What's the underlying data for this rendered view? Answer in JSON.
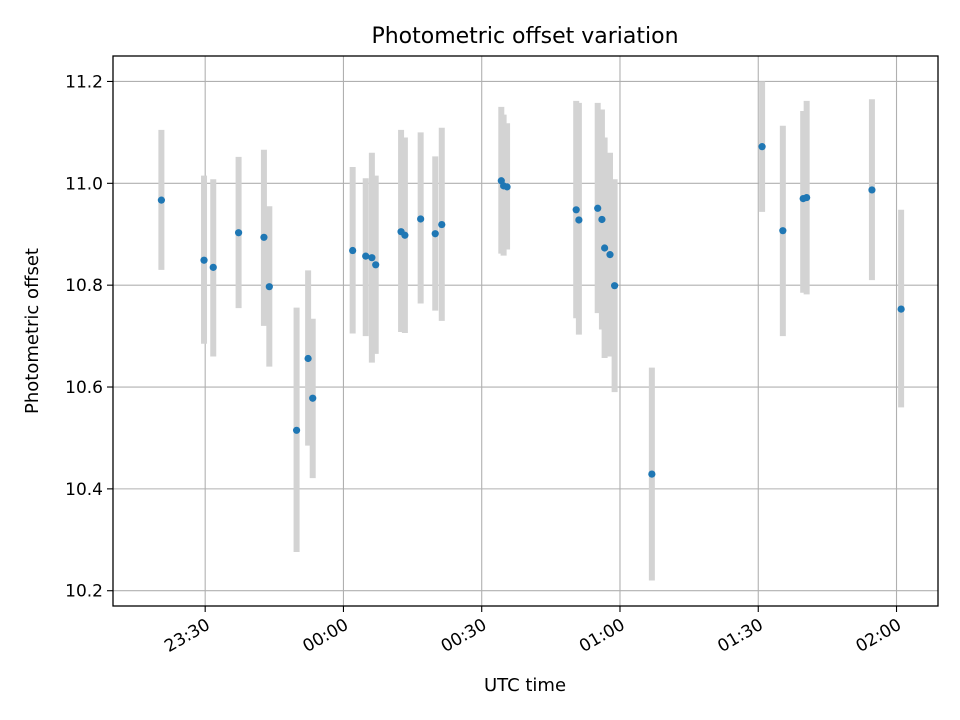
{
  "chart_data": {
    "type": "scatter",
    "title": "Photometric offset variation",
    "xlabel": "UTC time",
    "ylabel": "Photometric offset",
    "x_unit": "time",
    "xlim": [
      "23:10",
      "02:09"
    ],
    "ylim": [
      10.17,
      11.25
    ],
    "x_ticks": [
      "23:30",
      "00:00",
      "00:30",
      "01:00",
      "01:30",
      "02:00"
    ],
    "y_ticks": [
      10.2,
      10.4,
      10.6,
      10.8,
      11.0,
      11.2
    ],
    "y_tick_labels": [
      "10.2",
      "10.4",
      "10.6",
      "10.8",
      "11.0",
      "11.2"
    ],
    "grid": true,
    "point_color": "#1f77b4",
    "errorbar_color": "#d3d3d3",
    "series": [
      {
        "points": [
          {
            "x": "23:20:30",
            "y": 10.967,
            "ylo": 10.83,
            "yhi": 11.105
          },
          {
            "x": "23:29:45",
            "y": 10.849,
            "ylo": 10.685,
            "yhi": 11.015
          },
          {
            "x": "23:31:45",
            "y": 10.835,
            "ylo": 10.66,
            "yhi": 11.008
          },
          {
            "x": "23:37:15",
            "y": 10.903,
            "ylo": 10.755,
            "yhi": 11.052
          },
          {
            "x": "23:42:45",
            "y": 10.894,
            "ylo": 10.72,
            "yhi": 11.066
          },
          {
            "x": "23:43:55",
            "y": 10.797,
            "ylo": 10.64,
            "yhi": 10.955
          },
          {
            "x": "23:49:50",
            "y": 10.515,
            "ylo": 10.276,
            "yhi": 10.756
          },
          {
            "x": "23:52:20",
            "y": 10.656,
            "ylo": 10.485,
            "yhi": 10.829
          },
          {
            "x": "23:53:20",
            "y": 10.578,
            "ylo": 10.421,
            "yhi": 10.734
          },
          {
            "x": "00:02:00",
            "y": 10.868,
            "ylo": 10.705,
            "yhi": 11.032
          },
          {
            "x": "00:04:50",
            "y": 10.857,
            "ylo": 10.7,
            "yhi": 11.01
          },
          {
            "x": "00:06:10",
            "y": 10.854,
            "ylo": 10.648,
            "yhi": 11.06
          },
          {
            "x": "00:07:00",
            "y": 10.84,
            "ylo": 10.665,
            "yhi": 11.015
          },
          {
            "x": "00:12:30",
            "y": 10.905,
            "ylo": 10.708,
            "yhi": 11.105
          },
          {
            "x": "00:13:20",
            "y": 10.898,
            "ylo": 10.706,
            "yhi": 11.09
          },
          {
            "x": "00:16:45",
            "y": 10.93,
            "ylo": 10.764,
            "yhi": 11.1
          },
          {
            "x": "00:19:55",
            "y": 10.901,
            "ylo": 10.75,
            "yhi": 11.053
          },
          {
            "x": "00:21:20",
            "y": 10.919,
            "ylo": 10.73,
            "yhi": 11.109
          },
          {
            "x": "00:34:15",
            "y": 11.005,
            "ylo": 10.862,
            "yhi": 11.15
          },
          {
            "x": "00:34:45",
            "y": 10.995,
            "ylo": 10.858,
            "yhi": 11.135
          },
          {
            "x": "00:35:30",
            "y": 10.993,
            "ylo": 10.87,
            "yhi": 11.118
          },
          {
            "x": "00:50:30",
            "y": 10.948,
            "ylo": 10.735,
            "yhi": 11.162
          },
          {
            "x": "00:51:05",
            "y": 10.928,
            "ylo": 10.703,
            "yhi": 11.158
          },
          {
            "x": "00:55:10",
            "y": 10.951,
            "ylo": 10.745,
            "yhi": 11.158
          },
          {
            "x": "00:56:05",
            "y": 10.929,
            "ylo": 10.713,
            "yhi": 11.145
          },
          {
            "x": "00:56:40",
            "y": 10.873,
            "ylo": 10.657,
            "yhi": 11.09
          },
          {
            "x": "00:57:50",
            "y": 10.86,
            "ylo": 10.66,
            "yhi": 11.06
          },
          {
            "x": "00:58:50",
            "y": 10.799,
            "ylo": 10.59,
            "yhi": 11.008
          },
          {
            "x": "01:06:55",
            "y": 10.429,
            "ylo": 10.22,
            "yhi": 10.638
          },
          {
            "x": "01:30:50",
            "y": 11.072,
            "ylo": 10.944,
            "yhi": 11.2
          },
          {
            "x": "01:35:20",
            "y": 10.907,
            "ylo": 10.7,
            "yhi": 11.113
          },
          {
            "x": "01:39:45",
            "y": 10.97,
            "ylo": 10.785,
            "yhi": 11.142
          },
          {
            "x": "01:40:30",
            "y": 10.972,
            "ylo": 10.782,
            "yhi": 11.162
          },
          {
            "x": "01:54:40",
            "y": 10.987,
            "ylo": 10.81,
            "yhi": 11.165
          },
          {
            "x": "02:01:00",
            "y": 10.753,
            "ylo": 10.56,
            "yhi": 10.948
          }
        ]
      }
    ]
  }
}
